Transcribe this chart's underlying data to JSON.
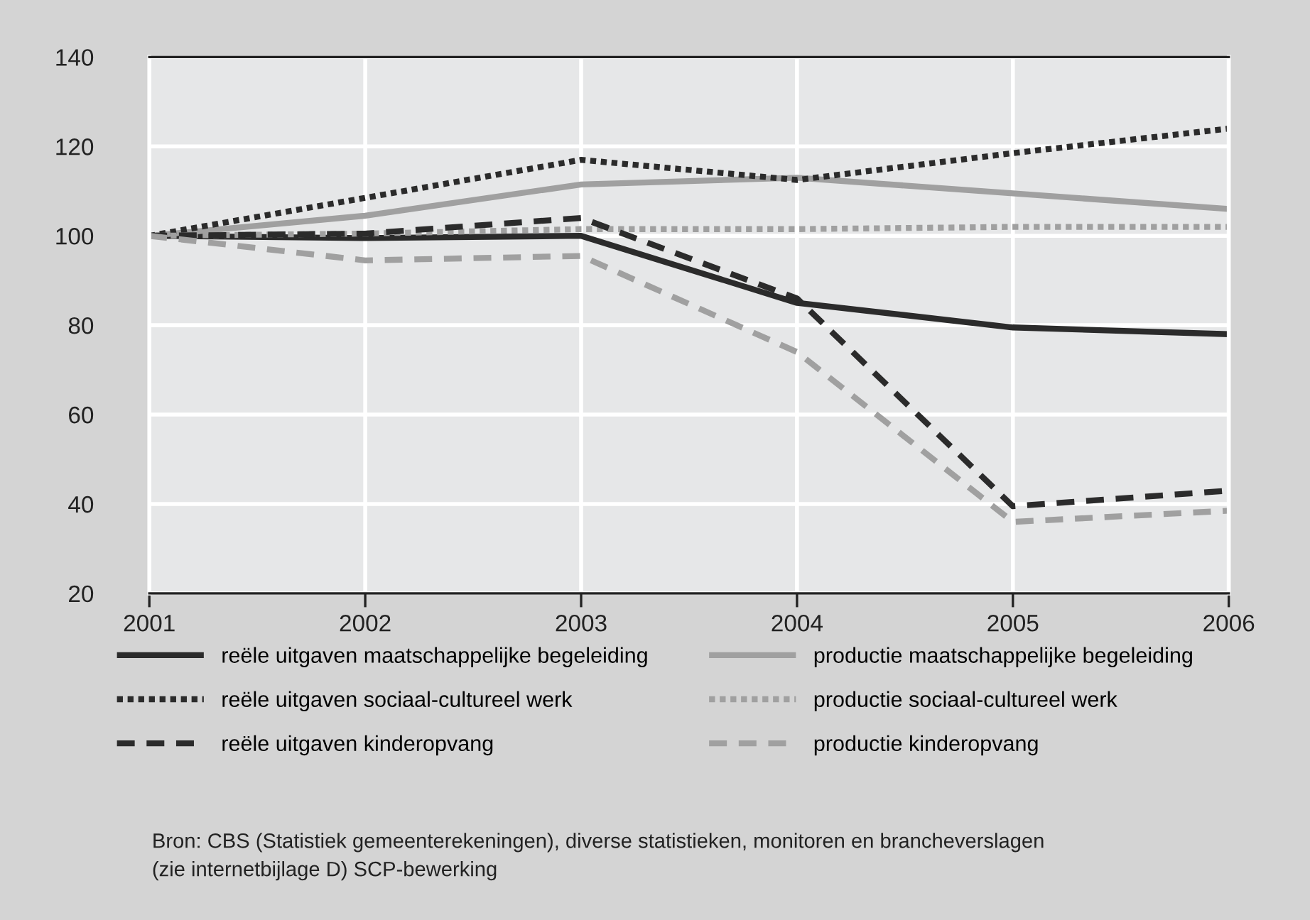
{
  "chart_data": {
    "type": "line",
    "x": [
      2001,
      2002,
      2003,
      2004,
      2005,
      2006
    ],
    "xlim": [
      2001,
      2006
    ],
    "xticks": [
      2001,
      2002,
      2003,
      2004,
      2005,
      2006
    ],
    "ylim": [
      20,
      140
    ],
    "yticks": [
      20,
      40,
      60,
      80,
      100,
      120,
      140
    ],
    "grid": true,
    "legend": "bottom",
    "marker": "none",
    "series": [
      {
        "name": "reële uitgaven maatschappelijke begeleiding",
        "color": "#2b2b2b",
        "line_style": "solid",
        "values": [
          100,
          99.5,
          100,
          85,
          79.5,
          78
        ]
      },
      {
        "name": "productie maatschappelijke begeleiding",
        "color": "#a0a0a0",
        "line_style": "solid",
        "values": [
          100,
          104.5,
          111.5,
          113,
          109.5,
          106
        ]
      },
      {
        "name": "reële uitgaven sociaal-cultureel werk",
        "color": "#2b2b2b",
        "line_style": "dotted",
        "values": [
          100,
          108.5,
          117,
          112.5,
          118.5,
          124
        ]
      },
      {
        "name": "productie sociaal-cultureel werk",
        "color": "#a0a0a0",
        "line_style": "dotted",
        "values": [
          100,
          100.5,
          101.5,
          101.5,
          102,
          102
        ]
      },
      {
        "name": "reële uitgaven kinderopvang",
        "color": "#2b2b2b",
        "line_style": "dashed",
        "values": [
          100,
          100.5,
          104,
          86,
          39.5,
          43
        ]
      },
      {
        "name": "productie kinderopvang",
        "color": "#a0a0a0",
        "line_style": "dashed",
        "values": [
          100,
          94.5,
          95.5,
          74,
          36,
          38.5
        ]
      }
    ],
    "annotations": [
      "Bron: CBS (Statistiek gemeenterekeningen), diverse statistieken, monitoren en brancheverslagen\n(zie internetbijlage D) SCP-bewerking"
    ]
  }
}
